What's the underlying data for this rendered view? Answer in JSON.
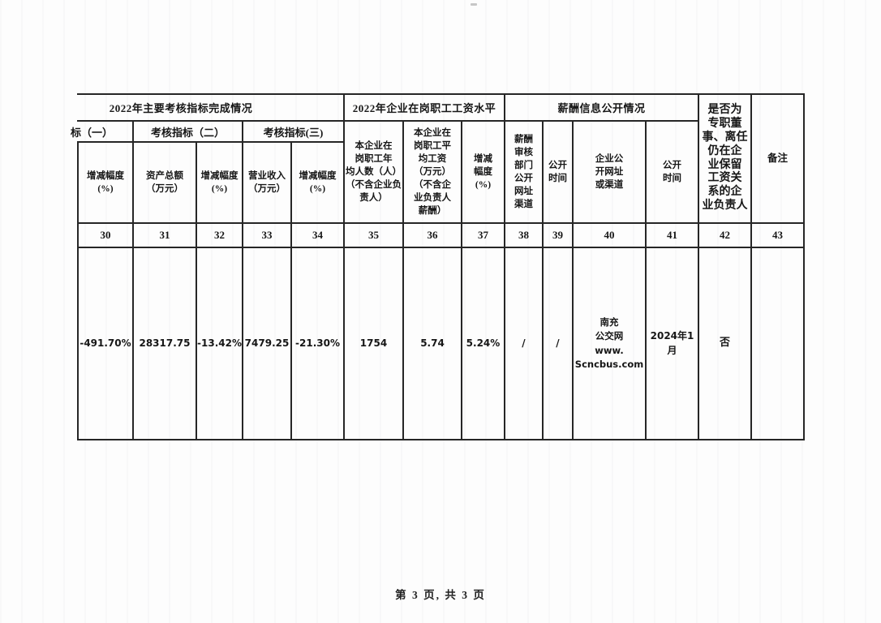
{
  "page": {
    "footer": "第 3 页, 共 3 页"
  },
  "table": {
    "groups": [
      {
        "label": "2022年主要考核指标完成情况"
      },
      {
        "label": "2022年企业在岗职工工资水平"
      },
      {
        "label": "薪酬信息公开情况"
      }
    ],
    "subgroups": [
      {
        "label": "标（一）"
      },
      {
        "label": "考核指标（二）"
      },
      {
        "label": "考核指标(三)"
      }
    ],
    "columns": [
      {
        "no": "30",
        "header": "增减幅度\n(%)",
        "value": "-491.70%"
      },
      {
        "no": "31",
        "header": "资产总额\n（万元）",
        "value": "28317.75"
      },
      {
        "no": "32",
        "header": "增减幅度\n(%)",
        "value": "-13.42%"
      },
      {
        "no": "33",
        "header": "营业收入\n（万元）",
        "value": "7479.25"
      },
      {
        "no": "34",
        "header": "增减幅度\n(%)",
        "value": "-21.30%"
      },
      {
        "no": "35",
        "header": "本企业在\n岗职工年\n均人数（人）\n（不含企业负\n责人）",
        "value": "1754"
      },
      {
        "no": "36",
        "header": "本企业在\n岗职工平\n均工资\n（万元）\n（不含企\n业负责人\n薪酬）",
        "value": "5.74"
      },
      {
        "no": "37",
        "header": "增减\n幅度\n(%)",
        "value": "5.24%"
      },
      {
        "no": "38",
        "header": "薪酬\n审核\n部门\n公开\n网址\n渠道",
        "value": "/"
      },
      {
        "no": "39",
        "header": "公开\n时间",
        "value": "/"
      },
      {
        "no": "40",
        "header": "企业公\n开网址\n或渠道",
        "value": "南充\n公交网\nwww.\nScncbus.com"
      },
      {
        "no": "41",
        "header": "公开\n时间",
        "value": "2024年1月"
      },
      {
        "no": "42",
        "header": "是否为\n专职董\n事、离任\n仍在企\n业保留\n工资关\n系的企\n业负责人",
        "value": "否"
      },
      {
        "no": "43",
        "header": "备注",
        "value": ""
      }
    ]
  }
}
